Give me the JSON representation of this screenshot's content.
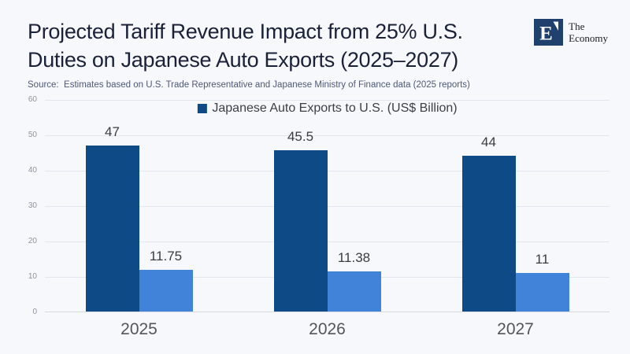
{
  "header": {
    "title_line1": "Projected Tariff Revenue Impact from 25% U.S.",
    "title_line2": "Duties on Japanese Auto Exports (2025–2027)",
    "source": "Source:  Estimates based on U.S. Trade Representative and Japanese Ministry of Finance data (2025 reports)",
    "brand": {
      "monogram": "E",
      "name_line1": "The",
      "name_line2": "Economy"
    }
  },
  "colors": {
    "background": "#f7f8fc",
    "title_text": "#1a2138",
    "source_text": "#4f5875",
    "dark_bar": "#0e4a85",
    "light_bar": "#4083d9",
    "gridline": "#e2e6ee",
    "axis_line": "#d5dae2",
    "tick_label": "#8d929c",
    "category_label": "#54545b",
    "value_label": "#3b3b40",
    "logo_navy": "#20406e"
  },
  "chart_data": {
    "type": "bar",
    "title": "Projected Tariff Revenue Impact from 25% U.S. Duties on Japanese Auto Exports (2025–2027)",
    "legend": [
      {
        "label": "Japanese Auto Exports to U.S. (US$ Billion)",
        "color": "#0e4a85",
        "position": "top-center"
      }
    ],
    "categories": [
      "2025",
      "2026",
      "2027"
    ],
    "series": [
      {
        "name": "Japanese Auto Exports to U.S. (US$ Billion)",
        "color": "#0e4a85",
        "values": [
          47,
          45.5,
          44
        ],
        "labels": [
          "47",
          "45.5",
          "44"
        ]
      },
      {
        "name": "",
        "color": "#4083d9",
        "values": [
          11.75,
          11.38,
          11
        ],
        "labels": [
          "11.75",
          "11.38",
          "11"
        ]
      }
    ],
    "xlabel": "",
    "ylabel": "",
    "ylim": [
      0,
      60
    ],
    "yticks": [
      0,
      10,
      20,
      30,
      40,
      50,
      60
    ],
    "grid": true
  }
}
